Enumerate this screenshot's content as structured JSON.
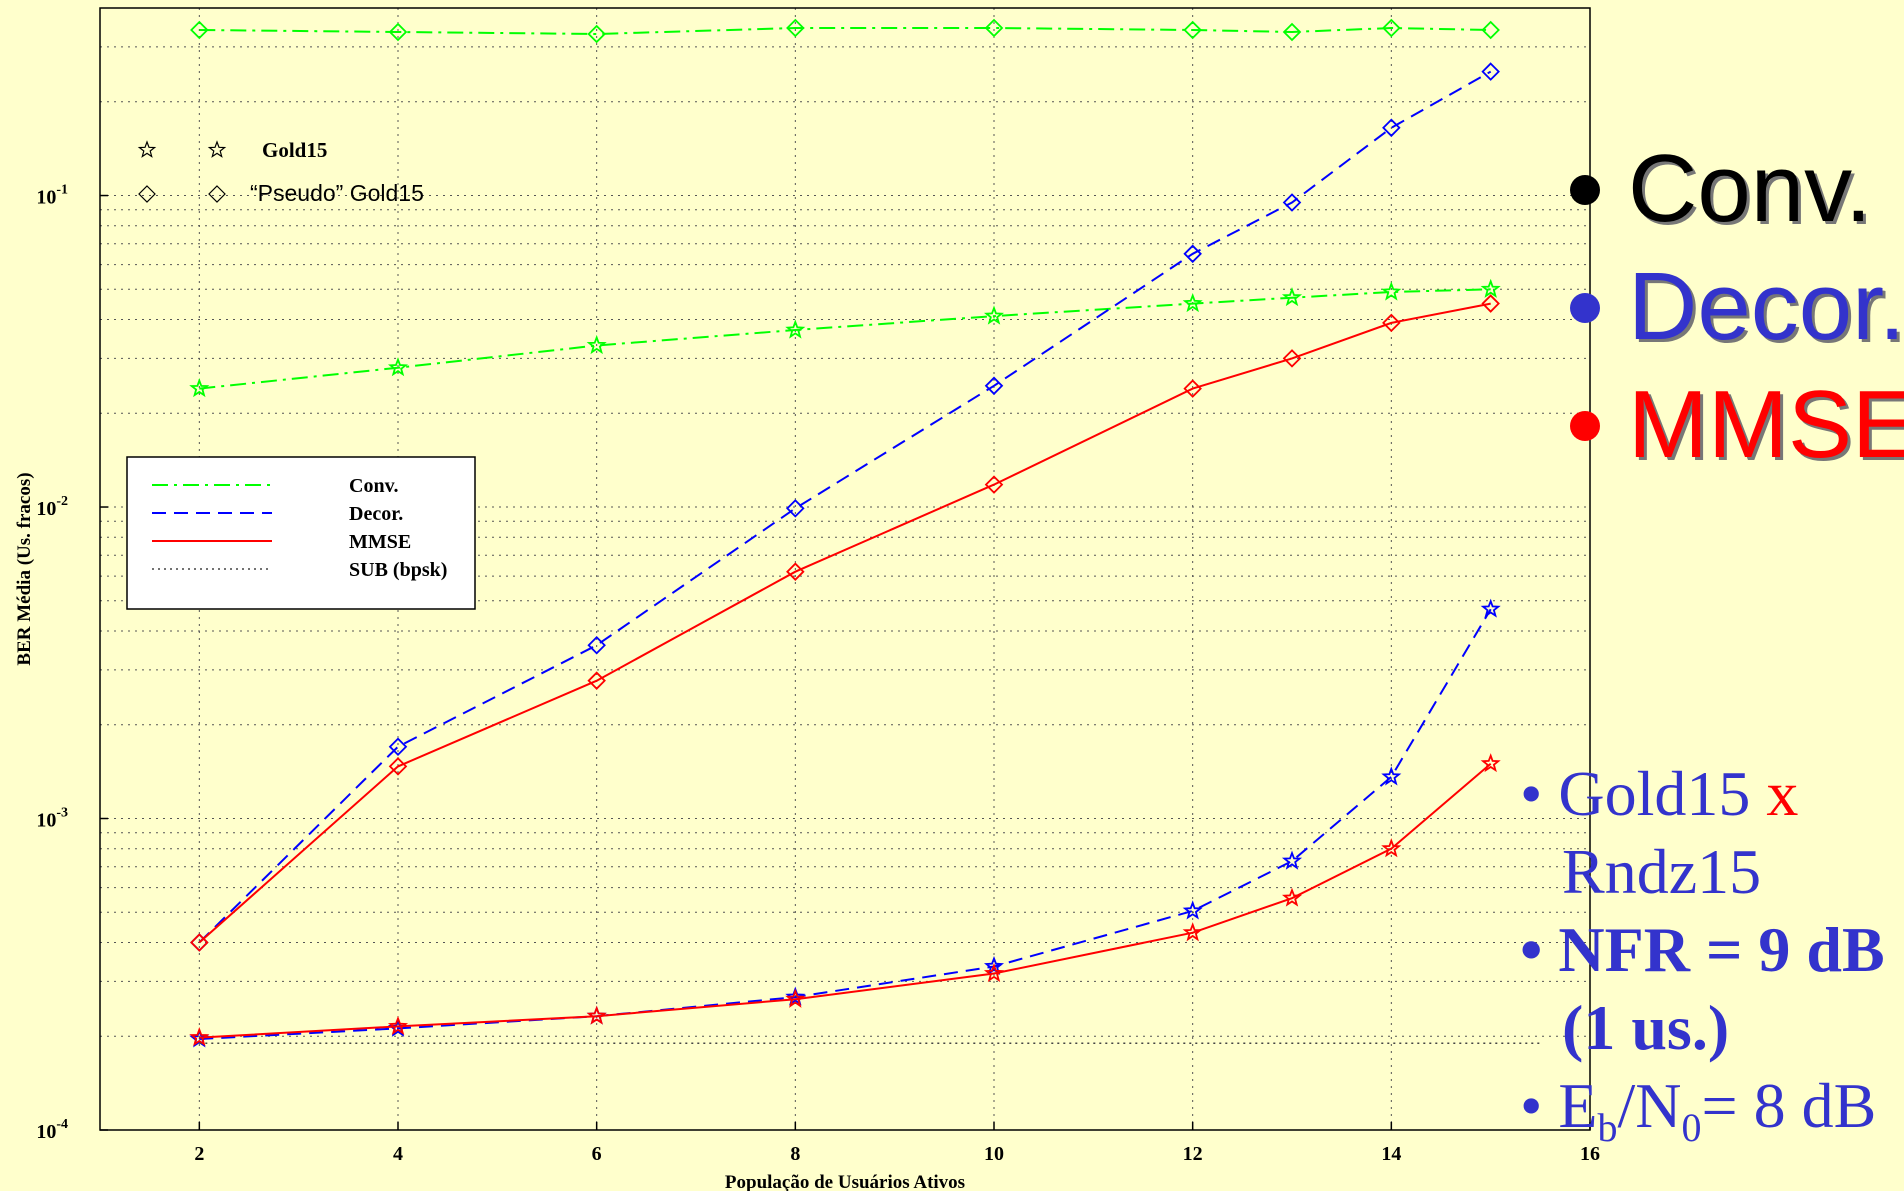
{
  "chart_data": {
    "type": "line",
    "title": "",
    "xlabel": "População de Usuários Ativos",
    "ylabel": "BER Média (Us. fracos)",
    "xlim": [
      1,
      16
    ],
    "ylim": [
      0.0001,
      0.4
    ],
    "yscale": "log",
    "grid": true,
    "x_ticks": [
      2,
      4,
      6,
      8,
      10,
      12,
      14,
      16
    ],
    "y_ticks": [
      {
        "value": 0.0001,
        "base": "10",
        "exp": "-4"
      },
      {
        "value": 0.001,
        "base": "10",
        "exp": "-3"
      },
      {
        "value": 0.01,
        "base": "10",
        "exp": "-2"
      },
      {
        "value": 0.1,
        "base": "10",
        "exp": "-1"
      }
    ],
    "legend_lines": {
      "placement": "left-middle",
      "entries": [
        {
          "label": "Conv.",
          "color": "#00FF00",
          "style": "dashdot"
        },
        {
          "label": "Decor.",
          "color": "#0000FF",
          "style": "dashed"
        },
        {
          "label": "MMSE",
          "color": "#FF0000",
          "style": "solid"
        },
        {
          "label": "SUB (bpsk)",
          "color": "#444444",
          "style": "dotted"
        }
      ]
    },
    "legend_markers": {
      "placement": "top-left",
      "entries": [
        {
          "label": "Gold15",
          "marker": "star"
        },
        {
          "label": "“Pseudo” Gold15",
          "marker": "diamond"
        }
      ]
    },
    "series": [
      {
        "method": "Conv.",
        "seq": "Pseudo Gold15",
        "color": "#00FF00",
        "style": "dashdot",
        "marker": "diamond",
        "x": [
          2,
          4,
          6,
          8,
          10,
          12,
          13,
          14,
          15
        ],
        "y": [
          0.34,
          0.335,
          0.33,
          0.345,
          0.345,
          0.34,
          0.335,
          0.345,
          0.34
        ]
      },
      {
        "method": "Conv.",
        "seq": "Gold15",
        "color": "#00FF00",
        "style": "dashdot",
        "marker": "star",
        "x": [
          2,
          4,
          6,
          8,
          10,
          12,
          13,
          14,
          15
        ],
        "y": [
          0.024,
          0.028,
          0.033,
          0.037,
          0.041,
          0.045,
          0.047,
          0.049,
          0.05
        ]
      },
      {
        "method": "Decor.",
        "seq": "Pseudo Gold15",
        "color": "#0000FF",
        "style": "dashed",
        "marker": "diamond",
        "x": [
          2,
          4,
          6,
          8,
          10,
          12,
          13,
          14,
          15
        ],
        "y": [
          0.0004,
          0.0017,
          0.0036,
          0.0099,
          0.0245,
          0.065,
          0.095,
          0.165,
          0.25
        ]
      },
      {
        "method": "MMSE",
        "seq": "Pseudo Gold15",
        "color": "#FF0000",
        "style": "solid",
        "marker": "diamond",
        "x": [
          2,
          4,
          6,
          8,
          10,
          12,
          13,
          14,
          15
        ],
        "y": [
          0.0004,
          0.00147,
          0.00277,
          0.0062,
          0.0118,
          0.024,
          0.03,
          0.039,
          0.045
        ]
      },
      {
        "method": "Decor.",
        "seq": "Gold15",
        "color": "#0000FF",
        "style": "dashed",
        "marker": "star",
        "x": [
          2,
          4,
          6,
          8,
          10,
          12,
          13,
          14,
          15
        ],
        "y": [
          0.000196,
          0.000212,
          0.000232,
          0.000267,
          0.000335,
          0.000505,
          0.00073,
          0.00136,
          0.0047
        ]
      },
      {
        "method": "MMSE",
        "seq": "Gold15",
        "color": "#FF0000",
        "style": "solid",
        "marker": "star",
        "x": [
          2,
          4,
          6,
          8,
          10,
          12,
          13,
          14,
          15
        ],
        "y": [
          0.000198,
          0.000215,
          0.000232,
          0.000263,
          0.000318,
          0.00043,
          0.000555,
          0.0008,
          0.0015
        ]
      },
      {
        "method": "SUB (bpsk)",
        "seq": "",
        "color": "#444444",
        "style": "dotted",
        "marker": "none",
        "x": [
          2,
          15.5
        ],
        "y": [
          0.00019,
          0.00019
        ]
      }
    ]
  },
  "bullets": [
    {
      "text": "Conv.",
      "color": "#000000"
    },
    {
      "text": "Decor.",
      "color": "#3333CC"
    },
    {
      "text": "MMSE",
      "color": "#FF0000"
    }
  ],
  "notes": {
    "line1_a": "Gold15",
    "line1_b": "x",
    "line2": "Rndz15",
    "line3": "NFR = 9 dB",
    "line4": "(1 us.)",
    "line5_e": "E",
    "line5_b": "b",
    "line5_n": "/N",
    "line5_0": "0",
    "line5_rest": "= 8 dB"
  },
  "colors": {
    "background": "#FFFFCC",
    "conv": "#00FF00",
    "decor": "#0000FF",
    "mmse": "#FF0000",
    "note_text": "#3333CC"
  }
}
